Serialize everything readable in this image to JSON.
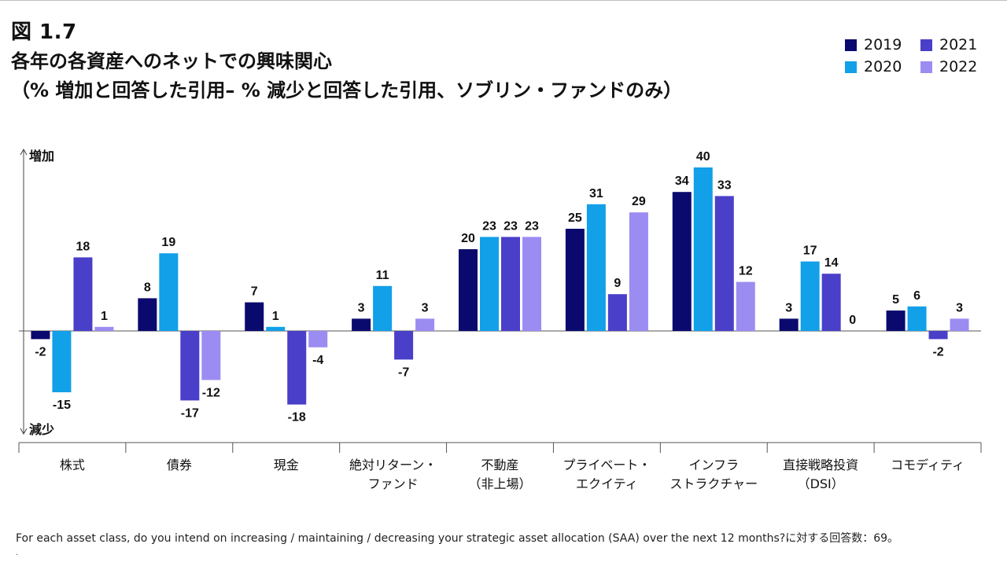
{
  "figure_label": "図 1.7",
  "chart_data": {
    "type": "bar",
    "title": "各年の各資産へのネットでの興味関心",
    "subtitle": "（% 増加と回答した引用– % 減少と回答した引用、ソブリン・ファンドのみ）",
    "y_top_label": "増加",
    "y_bottom_label": "減少",
    "ylim": [
      -20,
      43
    ],
    "categories": [
      [
        "株式"
      ],
      [
        "債券"
      ],
      [
        "現金"
      ],
      [
        "絶対リターン・",
        "ファンド"
      ],
      [
        "不動産",
        "（非上場）"
      ],
      [
        "プライベート・",
        "エクイティ"
      ],
      [
        "インフラ",
        "ストラクチャー"
      ],
      [
        "直接戦略投資",
        "（DSI）"
      ],
      [
        "コモディティ"
      ]
    ],
    "series": [
      {
        "name": "2019",
        "color": "#0a0a6e",
        "values": [
          -2,
          8,
          7,
          3,
          20,
          25,
          34,
          3,
          5
        ]
      },
      {
        "name": "2020",
        "color": "#12a0e8",
        "values": [
          -15,
          19,
          1,
          11,
          23,
          31,
          40,
          17,
          6
        ]
      },
      {
        "name": "2021",
        "color": "#4a3fc8",
        "values": [
          18,
          -17,
          -18,
          -7,
          23,
          9,
          33,
          14,
          -2
        ]
      },
      {
        "name": "2022",
        "color": "#9b8cf2",
        "values": [
          1,
          -12,
          -4,
          3,
          23,
          29,
          12,
          0,
          3
        ]
      }
    ]
  },
  "footnote": "For each asset class, do you intend on increasing / maintaining / decreasing your strategic asset allocation (SAA) over the next 12 months?に対する回答数：69。",
  "footnote_mark": "."
}
